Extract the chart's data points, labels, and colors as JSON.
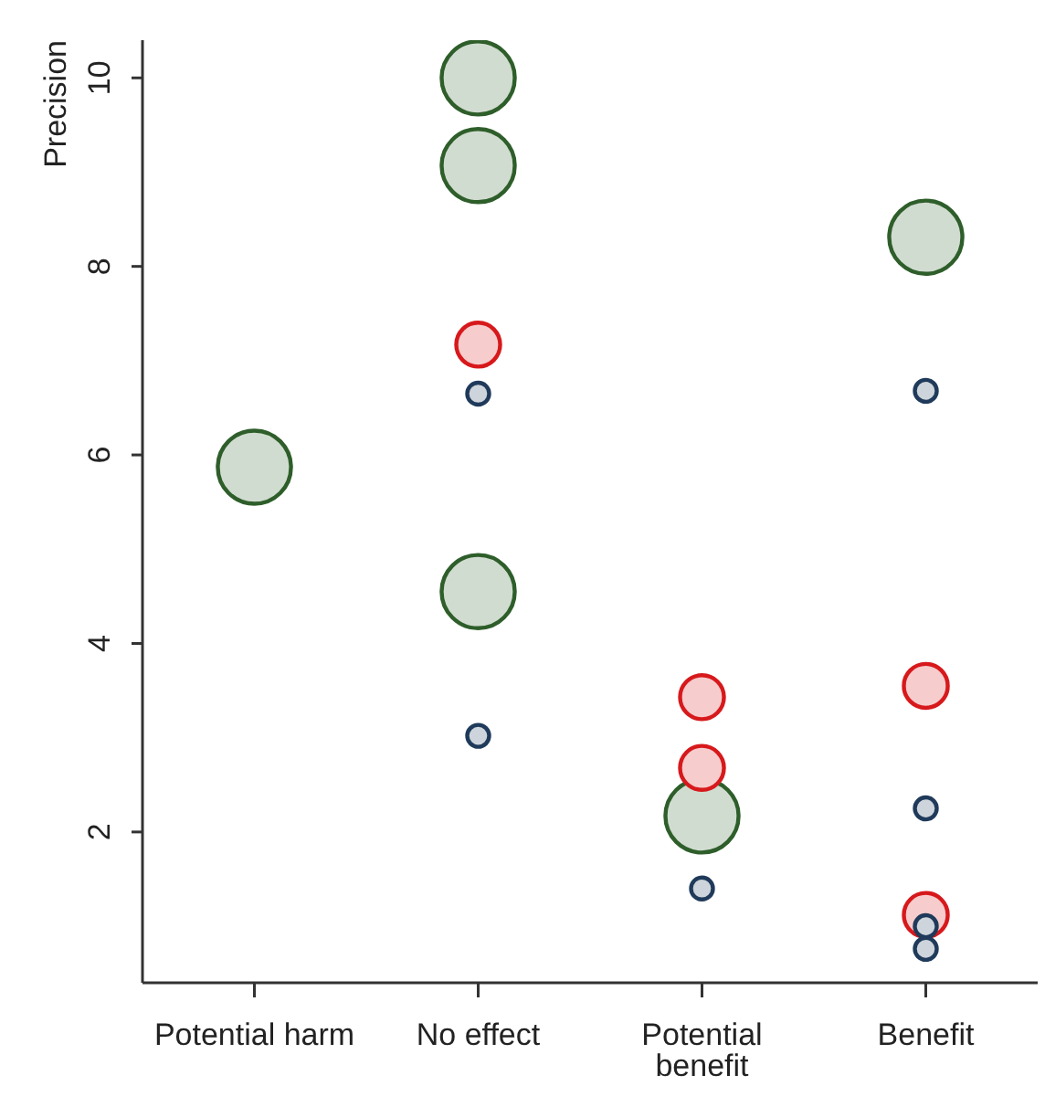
{
  "chart_data": {
    "type": "bubble",
    "ylabel": "Precision",
    "categories": [
      "Potential harm",
      "No effect",
      "Potential benefit",
      "Benefit"
    ],
    "ylim": [
      0.4,
      10.4
    ],
    "yticks": [
      2,
      4,
      6,
      8,
      10
    ],
    "grid": false,
    "legend": false,
    "series": [
      {
        "color": "#2e5e2a",
        "x": [
          "Potential harm",
          "No effect",
          "No effect",
          "No effect",
          "Potential benefit",
          "Benefit"
        ],
        "values": [
          5.87,
          10.0,
          9.07,
          4.55,
          2.17,
          8.31
        ],
        "sizes": [
          1,
          1,
          1,
          1,
          1,
          1
        ]
      },
      {
        "color": "#d7191c",
        "x": [
          "No effect",
          "Potential benefit",
          "Potential benefit",
          "Benefit",
          "Benefit"
        ],
        "values": [
          7.17,
          3.43,
          2.68,
          3.55,
          1.12
        ],
        "sizes": [
          0.36,
          0.36,
          0.36,
          0.36,
          0.36
        ]
      },
      {
        "color": "#1f3a5a",
        "x": [
          "No effect",
          "No effect",
          "Potential benefit",
          "Benefit",
          "Benefit",
          "Benefit",
          "Benefit"
        ],
        "values": [
          6.65,
          3.02,
          1.4,
          6.68,
          2.25,
          1.0,
          0.76
        ],
        "sizes": [
          0.09,
          0.09,
          0.09,
          0.09,
          0.09,
          0.09,
          0.09
        ]
      }
    ]
  }
}
